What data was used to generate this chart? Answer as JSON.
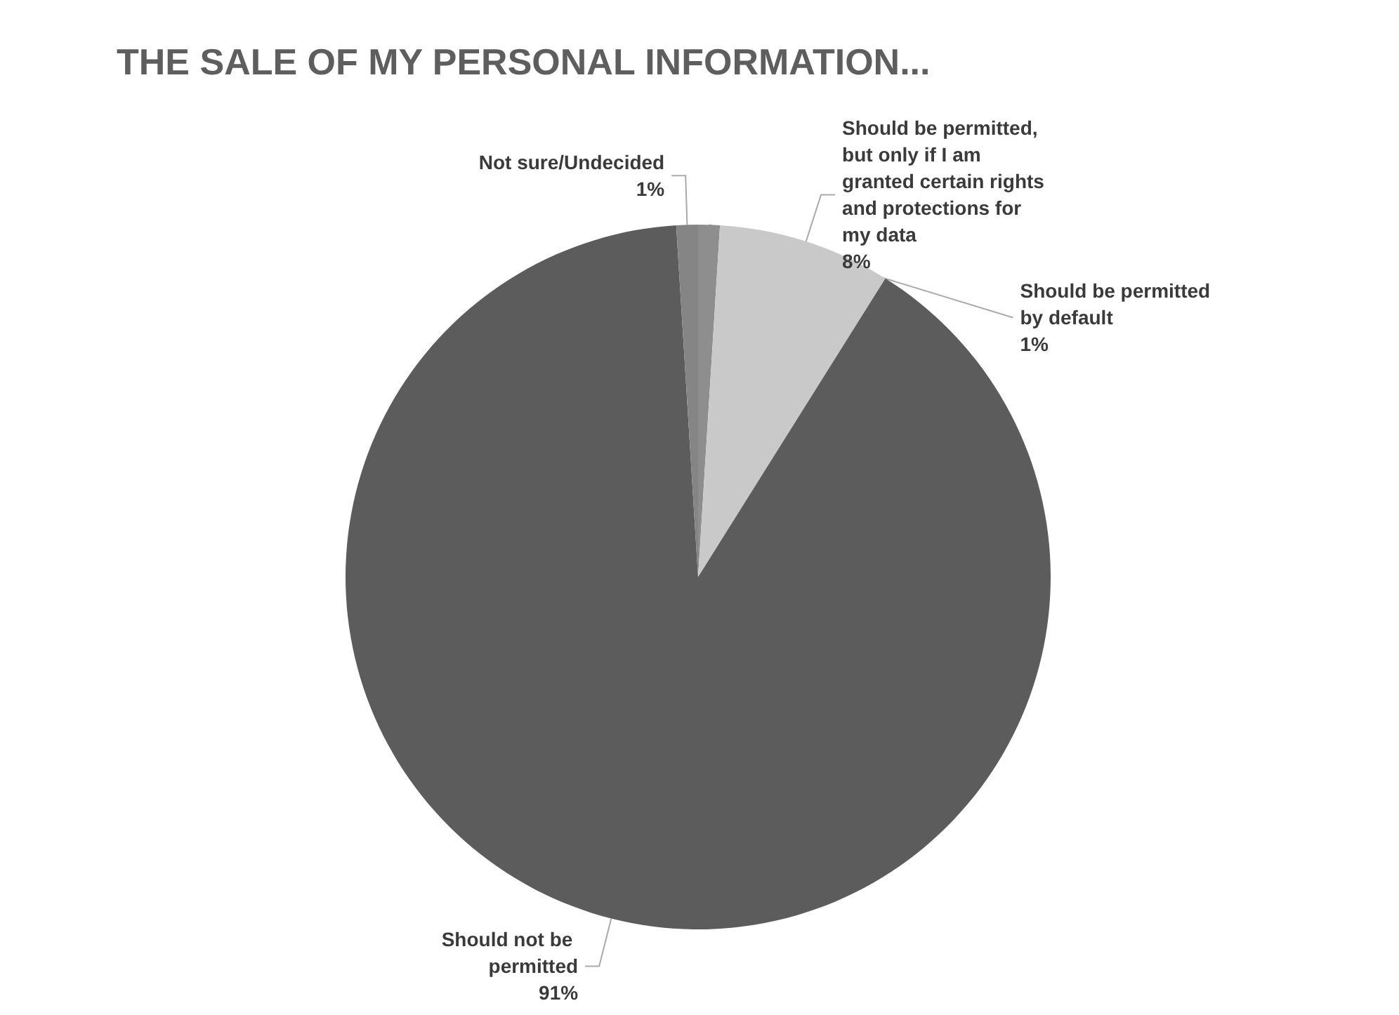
{
  "chart_data": {
    "type": "pie",
    "title": "THE SALE OF MY PERSONAL INFORMATION...",
    "categories": [
      "Should be permitted by default",
      "Should be permitted, but only if I am granted certain rights and protections for my data",
      "Should not be permitted",
      "Not sure/Undecided"
    ],
    "values": [
      1,
      8,
      91,
      1
    ],
    "value_labels": [
      "1%",
      "8%",
      "91%",
      "1%"
    ],
    "colors": [
      "#8e8e8e",
      "#c9c9c9",
      "#5c5c5c",
      "#858585"
    ]
  }
}
